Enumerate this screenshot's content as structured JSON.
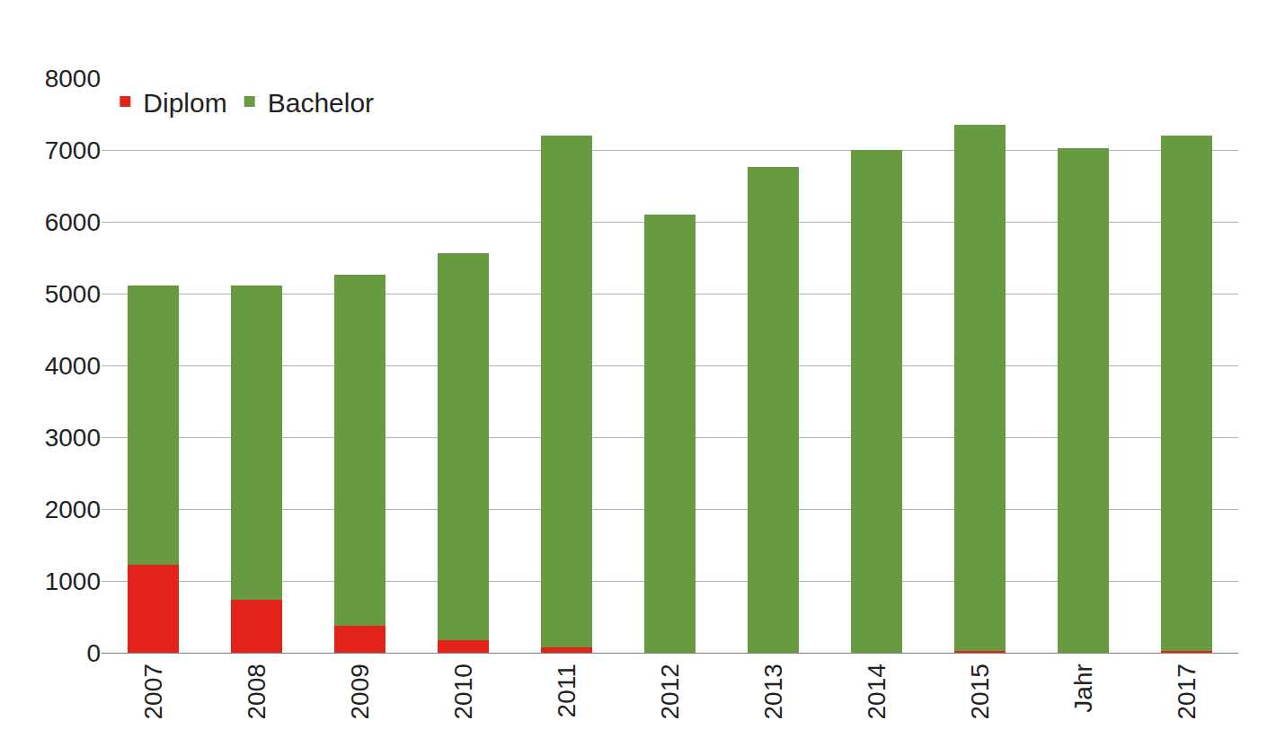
{
  "chart_data": {
    "type": "bar",
    "stacked": true,
    "grid": true,
    "legend": "top-left",
    "categories": [
      "2007",
      "2008",
      "2009",
      "2010",
      "2011",
      "2012",
      "2013",
      "2014",
      "2015",
      "Jahr",
      "2017"
    ],
    "series": [
      {
        "name": "Diplom",
        "color": "#e2231a",
        "values": [
          1230,
          740,
          370,
          170,
          70,
          0,
          0,
          0,
          30,
          0,
          20
        ]
      },
      {
        "name": "Bachelor",
        "color": "#689a3f",
        "values": [
          3880,
          4370,
          4890,
          5390,
          7130,
          6100,
          6760,
          7000,
          7320,
          7030,
          7180
        ]
      }
    ],
    "ylim": [
      0,
      8000
    ],
    "yticks": [
      0,
      1000,
      2000,
      3000,
      4000,
      5000,
      6000,
      7000,
      8000
    ]
  }
}
